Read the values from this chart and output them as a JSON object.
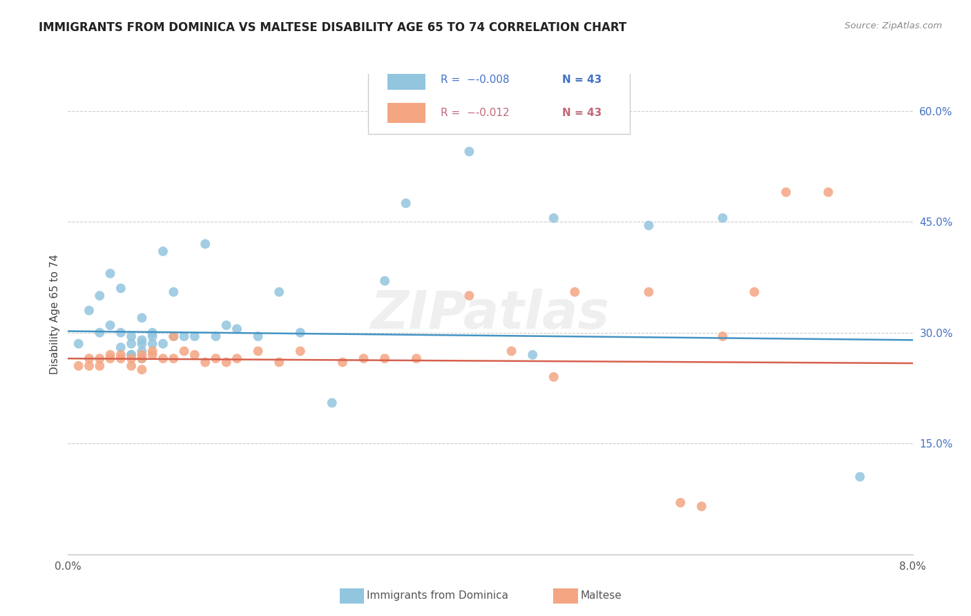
{
  "title": "IMMIGRANTS FROM DOMINICA VS MALTESE DISABILITY AGE 65 TO 74 CORRELATION CHART",
  "source": "Source: ZipAtlas.com",
  "ylabel": "Disability Age 65 to 74",
  "ylim": [
    0.0,
    0.65
  ],
  "xlim": [
    0.0,
    0.08
  ],
  "yticks": [
    0.0,
    0.15,
    0.3,
    0.45,
    0.6
  ],
  "ytick_labels": [
    "",
    "15.0%",
    "30.0%",
    "45.0%",
    "60.0%"
  ],
  "xticks": [
    0.0,
    0.02,
    0.04,
    0.06,
    0.08
  ],
  "xtick_labels": [
    "0.0%",
    "",
    "",
    "",
    "8.0%"
  ],
  "legend_label1": "Immigrants from Dominica",
  "legend_label2": "Maltese",
  "blue_color": "#92c5de",
  "pink_color": "#f4a582",
  "blue_line_color": "#4393c3",
  "pink_line_color": "#d6604d",
  "blue_r": -0.008,
  "pink_r": -0.012,
  "blue_r_text": "-0.008",
  "pink_r_text": "-0.012",
  "n1": "43",
  "n2": "43",
  "watermark": "ZIPatlas",
  "blue_intercept": 0.302,
  "blue_slope": -0.15,
  "pink_intercept": 0.265,
  "pink_slope": -0.08,
  "blue_x": [
    0.001,
    0.002,
    0.003,
    0.003,
    0.004,
    0.004,
    0.005,
    0.005,
    0.005,
    0.006,
    0.006,
    0.006,
    0.006,
    0.007,
    0.007,
    0.007,
    0.007,
    0.007,
    0.008,
    0.008,
    0.008,
    0.009,
    0.009,
    0.01,
    0.01,
    0.011,
    0.012,
    0.013,
    0.014,
    0.015,
    0.016,
    0.018,
    0.02,
    0.022,
    0.025,
    0.03,
    0.032,
    0.038,
    0.044,
    0.046,
    0.055,
    0.062,
    0.075
  ],
  "blue_y": [
    0.285,
    0.33,
    0.3,
    0.35,
    0.31,
    0.38,
    0.28,
    0.3,
    0.36,
    0.27,
    0.27,
    0.285,
    0.295,
    0.265,
    0.275,
    0.285,
    0.29,
    0.32,
    0.285,
    0.295,
    0.3,
    0.285,
    0.41,
    0.295,
    0.355,
    0.295,
    0.295,
    0.42,
    0.295,
    0.31,
    0.305,
    0.295,
    0.355,
    0.3,
    0.205,
    0.37,
    0.475,
    0.545,
    0.27,
    0.455,
    0.445,
    0.455,
    0.105
  ],
  "pink_x": [
    0.001,
    0.002,
    0.002,
    0.003,
    0.003,
    0.004,
    0.004,
    0.005,
    0.005,
    0.006,
    0.006,
    0.007,
    0.007,
    0.007,
    0.008,
    0.008,
    0.009,
    0.01,
    0.01,
    0.011,
    0.012,
    0.013,
    0.014,
    0.015,
    0.016,
    0.018,
    0.02,
    0.022,
    0.026,
    0.028,
    0.03,
    0.033,
    0.038,
    0.042,
    0.046,
    0.048,
    0.055,
    0.058,
    0.06,
    0.062,
    0.065,
    0.068,
    0.072
  ],
  "pink_y": [
    0.255,
    0.265,
    0.255,
    0.255,
    0.265,
    0.265,
    0.27,
    0.265,
    0.27,
    0.255,
    0.265,
    0.25,
    0.265,
    0.27,
    0.275,
    0.27,
    0.265,
    0.265,
    0.295,
    0.275,
    0.27,
    0.26,
    0.265,
    0.26,
    0.265,
    0.275,
    0.26,
    0.275,
    0.26,
    0.265,
    0.265,
    0.265,
    0.35,
    0.275,
    0.24,
    0.355,
    0.355,
    0.07,
    0.065,
    0.295,
    0.355,
    0.49,
    0.49
  ]
}
